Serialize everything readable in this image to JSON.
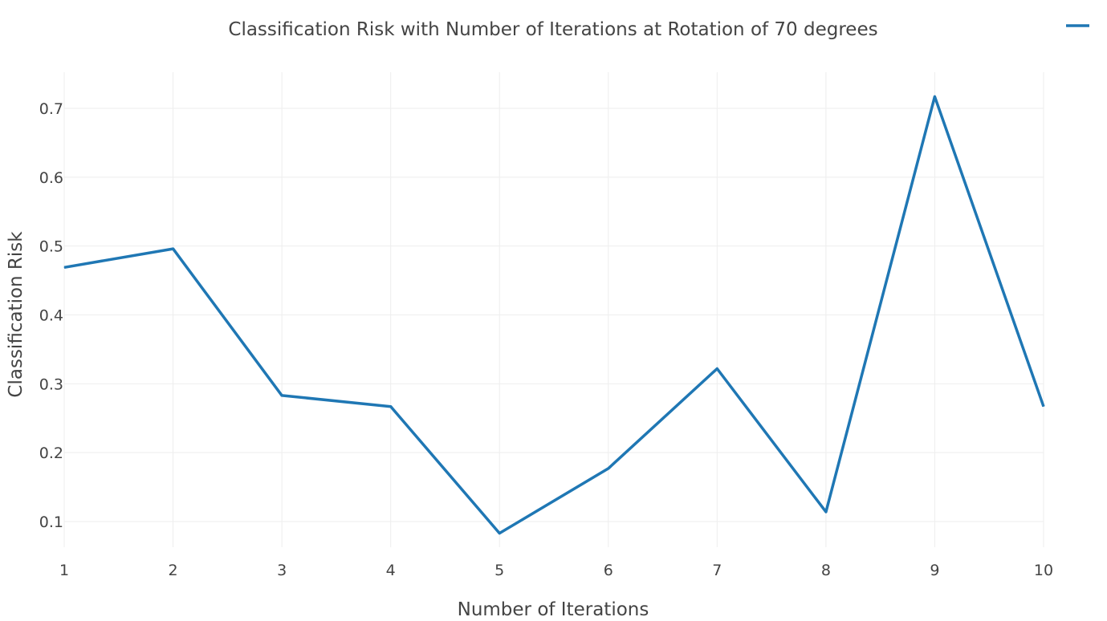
{
  "chart_data": {
    "type": "line",
    "title": "Classification Risk with Number of Iterations at Rotation of 70 degrees",
    "xlabel": "Number of Iterations",
    "ylabel": "Classification Risk",
    "x": [
      1,
      2,
      3,
      4,
      5,
      6,
      7,
      8,
      9,
      10
    ],
    "x_ticks": [
      "1",
      "2",
      "3",
      "4",
      "5",
      "6",
      "7",
      "8",
      "9",
      "10"
    ],
    "y_ticks": [
      "0.1",
      "0.2",
      "0.3",
      "0.4",
      "0.5",
      "0.6",
      "0.7"
    ],
    "xlim": [
      1,
      10
    ],
    "ylim": [
      0.05,
      0.75
    ],
    "grid": true,
    "legend_position": "top-right",
    "series": [
      {
        "name": "",
        "color": "#1f77b4",
        "values": [
          0.469,
          0.496,
          0.283,
          0.267,
          0.083,
          0.177,
          0.322,
          0.114,
          0.717,
          0.267
        ]
      }
    ]
  }
}
